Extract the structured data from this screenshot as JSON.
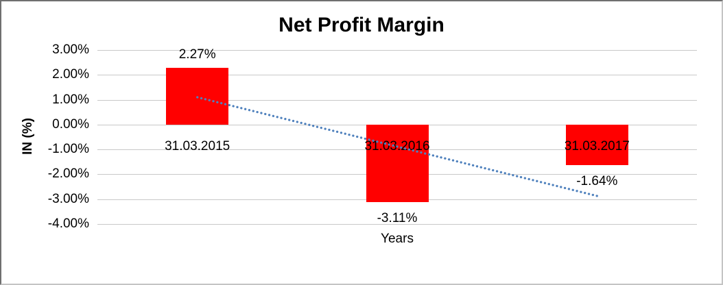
{
  "chart_data": {
    "type": "bar",
    "title": "Net Profit Margin",
    "xlabel": "Years",
    "ylabel": "IN (%)",
    "categories": [
      "31.03.2015",
      "31.03.2016",
      "31.03.2017"
    ],
    "values": [
      2.27,
      -3.11,
      -1.64
    ],
    "data_labels": [
      "2.27%",
      "-3.11%",
      "-1.64%"
    ],
    "yticks": [
      {
        "value": 3,
        "label": "3.00%"
      },
      {
        "value": 2,
        "label": "2.00%"
      },
      {
        "value": 1,
        "label": "1.00%"
      },
      {
        "value": 0,
        "label": "0.00%"
      },
      {
        "value": -1,
        "label": "-1.00%"
      },
      {
        "value": -2,
        "label": "-2.00%"
      },
      {
        "value": -3,
        "label": "-3.00%"
      },
      {
        "value": -4,
        "label": "-4.00%"
      }
    ],
    "ylim": [
      -4,
      3
    ],
    "grid": true,
    "legend": false,
    "bar_color": "#ff0000",
    "gridline_color": "#c8c8c8",
    "text_color": "#000000",
    "trendline": {
      "type": "linear",
      "style": "dotted",
      "color": "#4f81bd",
      "start": {
        "category_index": 0,
        "value": 1.1
      },
      "end": {
        "category_index": 2,
        "value": -2.87
      }
    }
  }
}
